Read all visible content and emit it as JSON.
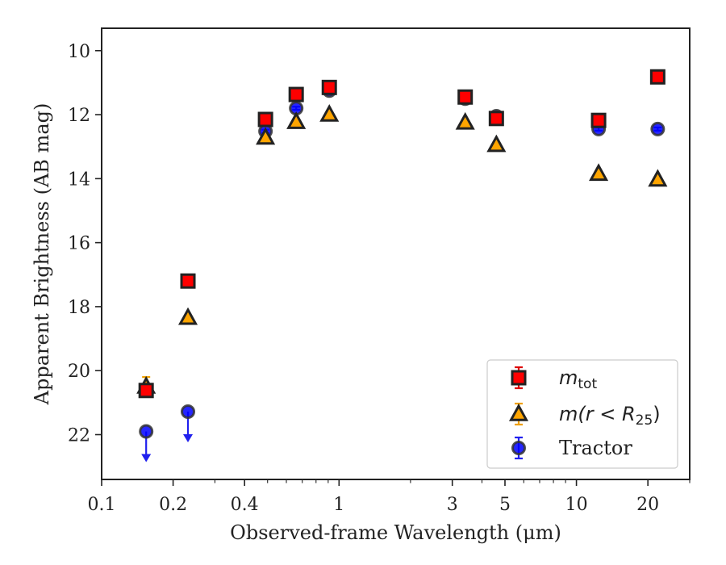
{
  "chart_data": {
    "type": "scatter",
    "title": "",
    "xlabel": "Observed-frame Wavelength (μm)",
    "ylabel": "Apparent Brightness (AB mag)",
    "xscale": "log",
    "xlim": [
      0.1,
      30
    ],
    "ylim": [
      23.4,
      9.3
    ],
    "y_inverted": true,
    "x_ticks": [
      {
        "value": 0.1,
        "label": "0.1"
      },
      {
        "value": 0.2,
        "label": "0.2"
      },
      {
        "value": 0.4,
        "label": "0.4"
      },
      {
        "value": 1,
        "label": "1"
      },
      {
        "value": 3,
        "label": "3"
      },
      {
        "value": 5,
        "label": "5"
      },
      {
        "value": 10,
        "label": "10"
      },
      {
        "value": 20,
        "label": "20"
      }
    ],
    "x_minor_ticks": [
      0.3,
      0.5,
      0.6,
      0.7,
      0.8,
      0.9,
      2,
      4,
      6,
      7,
      8,
      9,
      30
    ],
    "y_ticks": [
      {
        "value": 10,
        "label": "10"
      },
      {
        "value": 12,
        "label": "12"
      },
      {
        "value": 14,
        "label": "14"
      },
      {
        "value": 16,
        "label": "16"
      },
      {
        "value": 18,
        "label": "18"
      },
      {
        "value": 20,
        "label": "20"
      },
      {
        "value": 22,
        "label": "22"
      }
    ],
    "grid": false,
    "legend_position": "bottom-right",
    "legend": [
      {
        "series": "m_tot",
        "text_main": "m",
        "text_sub": "tot",
        "text_after": ""
      },
      {
        "series": "m_r25",
        "text_main": "m(r < R",
        "text_sub": "25",
        "text_after": ")"
      },
      {
        "series": "tractor",
        "text_main": "Tractor",
        "text_sub": "",
        "text_after": ""
      }
    ],
    "series": [
      {
        "id": "m_tot",
        "marker": "square",
        "color": "#ff0000",
        "edge": "#222222",
        "errcolor": "#dd0000",
        "points": [
          {
            "x": 0.154,
            "y": 20.62,
            "err": 0.12
          },
          {
            "x": 0.231,
            "y": 17.2,
            "err": 0.05
          },
          {
            "x": 0.49,
            "y": 12.15,
            "err": 0.05
          },
          {
            "x": 0.66,
            "y": 11.37,
            "err": 0.05
          },
          {
            "x": 0.91,
            "y": 11.15,
            "err": 0.08
          },
          {
            "x": 3.4,
            "y": 11.45,
            "err": 0.08
          },
          {
            "x": 4.6,
            "y": 12.12,
            "err": 0.05
          },
          {
            "x": 12.4,
            "y": 12.18,
            "err": 0.05
          },
          {
            "x": 22.0,
            "y": 10.82,
            "err": 0.05
          }
        ]
      },
      {
        "id": "m_r25",
        "marker": "triangle",
        "color": "#ffa500",
        "edge": "#222222",
        "errcolor": "#f0a000",
        "points": [
          {
            "x": 0.154,
            "y": 20.5,
            "err": 0.3
          },
          {
            "x": 0.231,
            "y": 18.35,
            "err": 0.05
          },
          {
            "x": 0.49,
            "y": 12.72,
            "err": 0.05
          },
          {
            "x": 0.66,
            "y": 12.23,
            "err": 0.05
          },
          {
            "x": 0.91,
            "y": 12.0,
            "err": 0.05
          },
          {
            "x": 3.4,
            "y": 12.25,
            "err": 0.05
          },
          {
            "x": 4.6,
            "y": 12.95,
            "err": 0.05
          },
          {
            "x": 12.4,
            "y": 13.85,
            "err": 0.05
          },
          {
            "x": 22.0,
            "y": 14.03,
            "err": 0.05
          }
        ]
      },
      {
        "id": "tractor",
        "marker": "circle",
        "color": "#0000ff",
        "edge": "#333333",
        "errcolor": "#2020ee",
        "points": [
          {
            "x": 0.154,
            "y": 21.9,
            "upper_limit": true
          },
          {
            "x": 0.231,
            "y": 21.28,
            "upper_limit": true
          },
          {
            "x": 0.49,
            "y": 12.52,
            "err": 0.05
          },
          {
            "x": 0.66,
            "y": 11.8,
            "err": 0.05
          },
          {
            "x": 0.91,
            "y": 11.25,
            "err": 0.05
          },
          {
            "x": 3.4,
            "y": 11.5,
            "err": 0.05
          },
          {
            "x": 4.6,
            "y": 12.05,
            "err": 0.05
          },
          {
            "x": 12.4,
            "y": 12.45,
            "err": 0.05
          },
          {
            "x": 22.0,
            "y": 12.45,
            "err": 0.05
          }
        ]
      }
    ]
  }
}
